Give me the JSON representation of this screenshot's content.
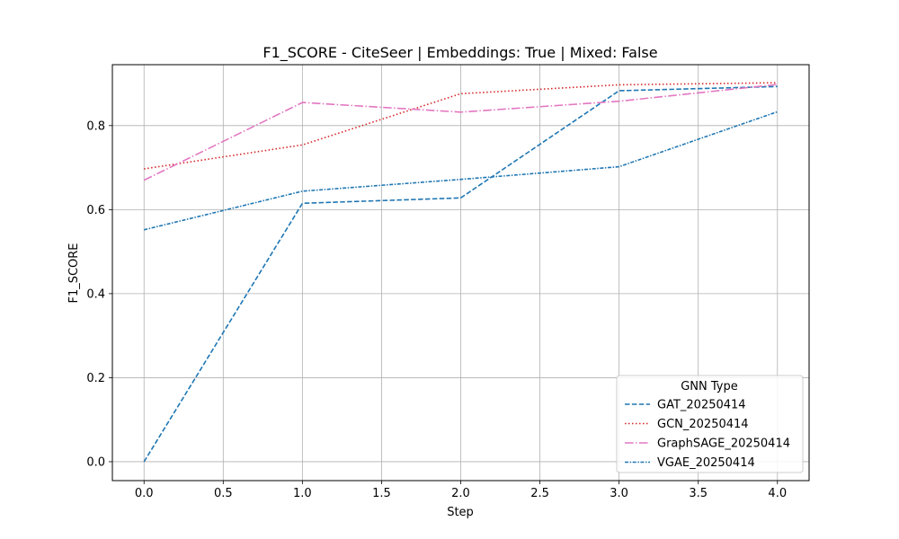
{
  "chart_data": {
    "type": "line",
    "title": "F1_SCORE - CiteSeer | Embeddings: True | Mixed: False",
    "xlabel": "Step",
    "ylabel": "F1_SCORE",
    "x": [
      0,
      1,
      2,
      3,
      4
    ],
    "xlim": [
      -0.2,
      4.2
    ],
    "ylim": [
      -0.045,
      0.945
    ],
    "xticks": [
      0.0,
      0.5,
      1.0,
      1.5,
      2.0,
      2.5,
      3.0,
      3.5,
      4.0
    ],
    "yticks": [
      0.0,
      0.2,
      0.4,
      0.6,
      0.8
    ],
    "xtick_labels": [
      "0.0",
      "0.5",
      "1.0",
      "1.5",
      "2.0",
      "2.5",
      "3.0",
      "3.5",
      "4.0"
    ],
    "ytick_labels": [
      "0.0",
      "0.2",
      "0.4",
      "0.6",
      "0.8"
    ],
    "grid": true,
    "legend": {
      "title": "GNN Type",
      "placement": "lower-right"
    },
    "series": [
      {
        "name": "GAT_20250414",
        "values": [
          0.0,
          0.615,
          0.628,
          0.883,
          0.893
        ],
        "color": "#1f77b4",
        "dash": "dashed"
      },
      {
        "name": "GCN_20250414",
        "values": [
          0.697,
          0.754,
          0.876,
          0.897,
          0.902
        ],
        "color": "#d62728",
        "dash": "dotted"
      },
      {
        "name": "GraphSAGE_20250414",
        "values": [
          0.67,
          0.855,
          0.832,
          0.858,
          0.898
        ],
        "color": "#e377c2",
        "dash": "dashdot"
      },
      {
        "name": "VGAE_20250414",
        "values": [
          0.552,
          0.644,
          0.672,
          0.702,
          0.833
        ],
        "color": "#1f77b4",
        "dash": "densedashdot"
      }
    ]
  }
}
